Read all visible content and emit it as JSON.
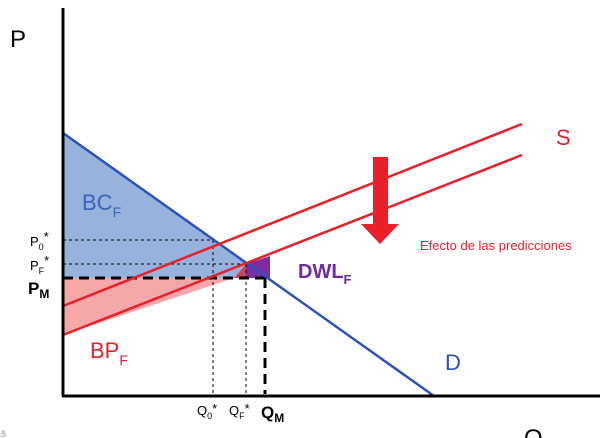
{
  "axes": {
    "y_label": "P",
    "x_label": "Q"
  },
  "curves": {
    "supply_label": "S",
    "demand_label": "D"
  },
  "areas": {
    "bc": {
      "main": "BC",
      "sub": "F"
    },
    "bp": {
      "main": "BP",
      "sub": "F"
    },
    "dwl": {
      "main": "DWL",
      "sub": "F"
    }
  },
  "price_labels": {
    "p0": {
      "main": "P",
      "sub": "0",
      "sup": "*"
    },
    "pf": {
      "main": "P",
      "sub": "F",
      "sup": "*"
    },
    "pm": {
      "main": "P",
      "sub": "M"
    }
  },
  "quantity_labels": {
    "q0": {
      "main": "Q",
      "sub": "0",
      "sup": "*"
    },
    "qf": {
      "main": "Q",
      "sub": "F",
      "sup": "*"
    },
    "qm": {
      "main": "Q",
      "sub": "M"
    }
  },
  "annotation": "Efecto de las predicciones",
  "corner_mark": "2015",
  "colors": {
    "supply": "#e8202a",
    "demand": "#2a52be",
    "consumer_area": "#97b2dc",
    "producer_area": "#f6a7a9",
    "dwl_area": "#7a2fa0",
    "dwl_red_part": "#c7465a",
    "bc_text": "#3a63b8",
    "bp_text": "#e8202a",
    "dwl_text": "#6f2a9e",
    "annotation_text": "#e8202a",
    "arrow": "#e8202a"
  }
}
